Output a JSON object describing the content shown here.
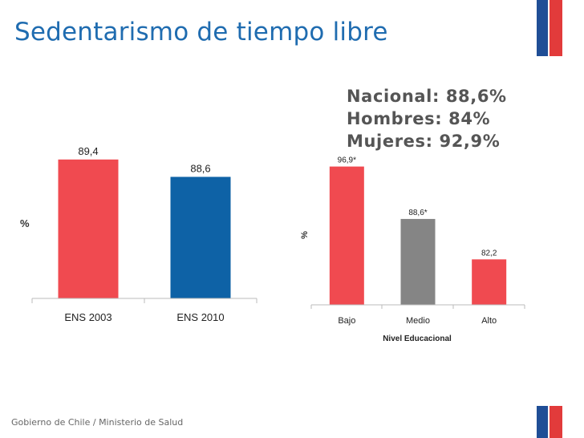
{
  "slide": {
    "title": "Sedentarismo de tiempo libre",
    "footer": "Gobierno de Chile / Ministerio de Salud"
  },
  "stats": {
    "nacional": "Nacional: 88,6%",
    "hombres": "Hombres: 84%",
    "mujeres": "Mujeres: 92,9%"
  },
  "colors": {
    "title": "#1f6cb0",
    "red": "#f04a50",
    "blue": "#0e62a6",
    "gray": "#858585",
    "flag_blue": "#1f4e96",
    "flag_red": "#e23b3b"
  },
  "chart_data": [
    {
      "type": "bar",
      "title": "",
      "xlabel": "",
      "ylabel": "%",
      "categories": [
        "ENS 2003",
        "ENS 2010"
      ],
      "values": [
        89.4,
        88.6
      ],
      "labels": [
        "89,4",
        "88,6"
      ],
      "colors": [
        "#f04a50",
        "#0e62a6"
      ],
      "ylim": [
        83,
        91.5
      ]
    },
    {
      "type": "bar",
      "title": "",
      "xlabel": "Nivel Educacional",
      "ylabel": "%",
      "categories": [
        "Bajo",
        "Medio",
        "Alto"
      ],
      "values": [
        96.9,
        88.6,
        82.2
      ],
      "labels": [
        "96,9*",
        "88,6*",
        "82,2"
      ],
      "colors": [
        "#f04a50",
        "#858585",
        "#f04a50"
      ],
      "ylim": [
        75,
        98.5
      ]
    }
  ]
}
